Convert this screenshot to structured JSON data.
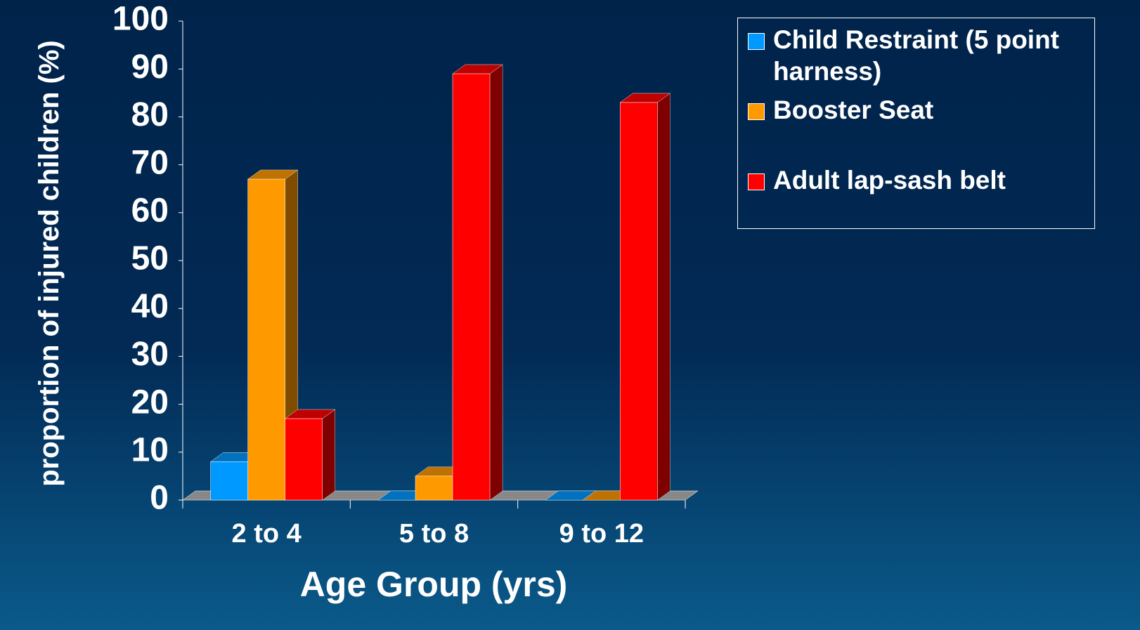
{
  "chart_data": {
    "type": "bar3d",
    "x_label": "Age Group (yrs)",
    "y_label": "proportion of injured children (%)",
    "categories": [
      "2 to 4",
      "5 to 8",
      "9 to 12"
    ],
    "series": [
      {
        "name": "Child Restraint (5 point harness)",
        "color": "#0099ff",
        "values": [
          8,
          0,
          0
        ]
      },
      {
        "name": "Booster Seat",
        "color": "#ff9900",
        "values": [
          67,
          5,
          0
        ]
      },
      {
        "name": "Adult lap-sash belt",
        "color": "#ff0000",
        "values": [
          17,
          89,
          83
        ]
      }
    ],
    "ylim": [
      0,
      100
    ],
    "yticks": [
      0,
      10,
      20,
      30,
      40,
      50,
      60,
      70,
      80,
      90,
      100
    ]
  }
}
